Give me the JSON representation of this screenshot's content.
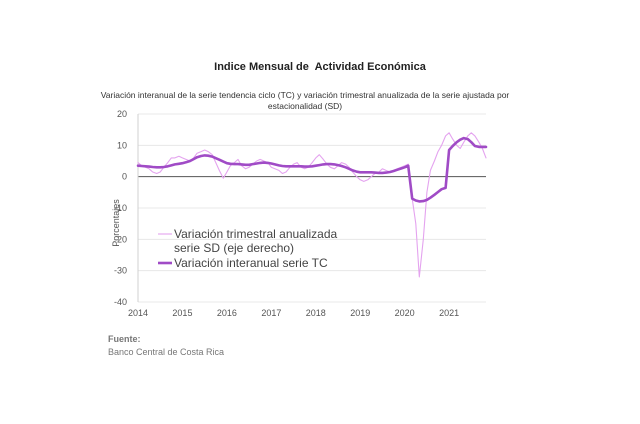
{
  "chart_data": {
    "type": "line",
    "title": "Indice Mensual de  Actividad Económica",
    "subtitle": "Variación interanual de la serie tendencia ciclo (TC) y variación trimestral anualizada de la serie ajustada por estacionalidad (SD)",
    "ylabel": "Porcentajes",
    "xlabel": "",
    "ylim": [
      -40,
      20
    ],
    "xlim": [
      2014.0,
      2021.83
    ],
    "y_ticks": [
      "20",
      "10",
      "0",
      "-10",
      "-20",
      "-30",
      "-40"
    ],
    "x_ticks": [
      "2014",
      "2015",
      "2016",
      "2017",
      "2018",
      "2019",
      "2020",
      "2021"
    ],
    "grid": true,
    "legend_position": "center-left",
    "series": [
      {
        "name": "Variación trimestral anualizada serie SD (eje derecho)",
        "legend_lines": [
          "Variación trimestral anualizada",
          "serie SD (eje derecho)"
        ],
        "color": "#e4a3ef",
        "x": [
          2014.0,
          2014.08,
          2014.17,
          2014.25,
          2014.33,
          2014.42,
          2014.5,
          2014.58,
          2014.67,
          2014.75,
          2014.83,
          2014.92,
          2015.0,
          2015.08,
          2015.17,
          2015.25,
          2015.33,
          2015.42,
          2015.5,
          2015.58,
          2015.67,
          2015.75,
          2015.83,
          2015.92,
          2016.0,
          2016.08,
          2016.17,
          2016.25,
          2016.33,
          2016.42,
          2016.5,
          2016.58,
          2016.67,
          2016.75,
          2016.83,
          2016.92,
          2017.0,
          2017.08,
          2017.17,
          2017.25,
          2017.33,
          2017.42,
          2017.5,
          2017.58,
          2017.67,
          2017.75,
          2017.83,
          2017.92,
          2018.0,
          2018.08,
          2018.17,
          2018.25,
          2018.33,
          2018.42,
          2018.5,
          2018.58,
          2018.67,
          2018.75,
          2018.83,
          2018.92,
          2019.0,
          2019.08,
          2019.17,
          2019.25,
          2019.33,
          2019.42,
          2019.5,
          2019.58,
          2019.67,
          2019.75,
          2019.83,
          2019.92,
          2020.0,
          2020.08,
          2020.17,
          2020.25,
          2020.33,
          2020.42,
          2020.5,
          2020.58,
          2020.67,
          2020.75,
          2020.83,
          2020.92,
          2021.0,
          2021.08,
          2021.17,
          2021.25,
          2021.33,
          2021.42,
          2021.5,
          2021.58,
          2021.67,
          2021.75,
          2021.83
        ],
        "values": [
          4.5,
          3.5,
          3.0,
          2.5,
          1.5,
          1.0,
          1.5,
          3.0,
          4.5,
          6.0,
          6.0,
          6.5,
          6.0,
          5.5,
          5.0,
          6.0,
          7.5,
          8.0,
          8.5,
          8.0,
          7.0,
          4.5,
          2.0,
          -0.5,
          1.5,
          3.5,
          4.5,
          5.5,
          3.5,
          2.5,
          3.0,
          4.0,
          5.0,
          5.5,
          5.0,
          4.5,
          3.0,
          2.5,
          2.0,
          1.0,
          1.5,
          3.0,
          4.0,
          4.5,
          3.0,
          2.5,
          3.0,
          4.5,
          6.0,
          7.0,
          5.5,
          4.0,
          3.0,
          2.5,
          3.5,
          4.5,
          4.0,
          3.0,
          1.5,
          0.0,
          -1.0,
          -1.5,
          -1.0,
          0.0,
          1.0,
          1.5,
          2.5,
          2.0,
          1.5,
          2.0,
          2.5,
          3.0,
          3.5,
          4.0,
          -7.0,
          -15.0,
          -32.0,
          -20.0,
          -5.0,
          2.0,
          5.0,
          8.0,
          10.0,
          13.0,
          14.0,
          12.0,
          10.0,
          9.0,
          11.0,
          13.0,
          14.0,
          13.0,
          11.0,
          9.0,
          6.0
        ]
      },
      {
        "name": "Variación interanual serie TC",
        "legend_lines": [
          "Variación interanual serie TC"
        ],
        "color": "#a04bc6",
        "x": [
          2014.0,
          2014.08,
          2014.17,
          2014.25,
          2014.33,
          2014.42,
          2014.5,
          2014.58,
          2014.67,
          2014.75,
          2014.83,
          2014.92,
          2015.0,
          2015.08,
          2015.17,
          2015.25,
          2015.33,
          2015.42,
          2015.5,
          2015.58,
          2015.67,
          2015.75,
          2015.83,
          2015.92,
          2016.0,
          2016.08,
          2016.17,
          2016.25,
          2016.33,
          2016.42,
          2016.5,
          2016.58,
          2016.67,
          2016.75,
          2016.83,
          2016.92,
          2017.0,
          2017.08,
          2017.17,
          2017.25,
          2017.33,
          2017.42,
          2017.5,
          2017.58,
          2017.67,
          2017.75,
          2017.83,
          2017.92,
          2018.0,
          2018.08,
          2018.17,
          2018.25,
          2018.33,
          2018.42,
          2018.5,
          2018.58,
          2018.67,
          2018.75,
          2018.83,
          2018.92,
          2019.0,
          2019.08,
          2019.17,
          2019.25,
          2019.33,
          2019.42,
          2019.5,
          2019.58,
          2019.67,
          2019.75,
          2019.83,
          2019.92,
          2020.0,
          2020.08,
          2020.17,
          2020.25,
          2020.33,
          2020.42,
          2020.5,
          2020.58,
          2020.67,
          2020.75,
          2020.83,
          2020.92,
          2021.0,
          2021.08,
          2021.17,
          2021.25,
          2021.33,
          2021.42,
          2021.5,
          2021.58,
          2021.67,
          2021.75,
          2021.83
        ],
        "values": [
          3.5,
          3.4,
          3.3,
          3.2,
          3.1,
          3.0,
          3.0,
          3.1,
          3.3,
          3.6,
          3.9,
          4.1,
          4.3,
          4.6,
          5.0,
          5.6,
          6.2,
          6.6,
          6.8,
          6.7,
          6.4,
          5.9,
          5.4,
          4.8,
          4.3,
          4.1,
          4.0,
          4.0,
          3.9,
          3.8,
          3.8,
          4.0,
          4.2,
          4.4,
          4.5,
          4.4,
          4.2,
          3.9,
          3.6,
          3.4,
          3.3,
          3.3,
          3.3,
          3.3,
          3.3,
          3.2,
          3.2,
          3.3,
          3.5,
          3.7,
          3.9,
          4.0,
          4.0,
          3.9,
          3.7,
          3.4,
          3.0,
          2.5,
          2.0,
          1.6,
          1.4,
          1.4,
          1.4,
          1.4,
          1.3,
          1.2,
          1.2,
          1.3,
          1.5,
          1.8,
          2.2,
          2.6,
          3.0,
          3.5,
          -7.0,
          -7.6,
          -7.9,
          -7.8,
          -7.4,
          -6.7,
          -5.8,
          -4.9,
          -4.0,
          -3.6,
          8.5,
          9.8,
          11.0,
          11.8,
          12.3,
          12.0,
          11.0,
          9.8,
          9.5,
          9.5,
          9.5
        ]
      }
    ]
  },
  "source": {
    "label": "Fuente:",
    "text": "Banco Central de Costa Rica"
  }
}
